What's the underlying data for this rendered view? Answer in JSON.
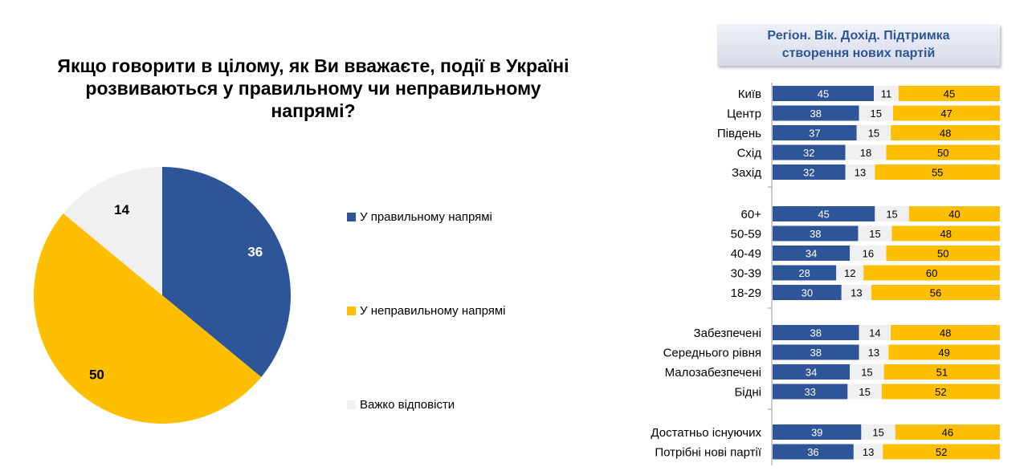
{
  "colors": {
    "right": "#2e5597",
    "hard": "#f0f0f0",
    "wrong": "#fdbf00"
  },
  "chart_data": [
    {
      "type": "pie",
      "title": "Якщо говорити в цілому, як Ви вважаєте, події в Україні розвиваються у правильному чи неправильному напрямі?",
      "slices": [
        {
          "label": "У правильному напрямі",
          "value": 36,
          "color": "#2e5597"
        },
        {
          "label": "У неправильному напрямі",
          "value": 50,
          "color": "#fdbf00"
        },
        {
          "label": "Важко відповісти",
          "value": 14,
          "color": "#f0f0f0"
        }
      ],
      "legend": [
        "У правильному напрямі",
        "У неправильному напрямі",
        "Важко відповісти"
      ],
      "legend_placement": "right"
    },
    {
      "type": "bar",
      "orientation": "horizontal",
      "stacked": true,
      "title": "Регіон. Вік. Дохід. Підтримка створення нових партій",
      "series_order": [
        "У правильному напрямі",
        "Важко відповісти",
        "У неправильному напрямі"
      ],
      "groups": [
        {
          "rows": [
            {
              "label": "Київ",
              "values": [
                45,
                11,
                45
              ]
            },
            {
              "label": "Центр",
              "values": [
                38,
                15,
                47
              ]
            },
            {
              "label": "Південь",
              "values": [
                37,
                15,
                48
              ]
            },
            {
              "label": "Схід",
              "values": [
                32,
                18,
                50
              ]
            },
            {
              "label": "Захід",
              "values": [
                32,
                13,
                55
              ]
            }
          ]
        },
        {
          "rows": [
            {
              "label": "60+",
              "values": [
                45,
                15,
                40
              ]
            },
            {
              "label": "50-59",
              "values": [
                38,
                15,
                48
              ]
            },
            {
              "label": "40-49",
              "values": [
                34,
                16,
                50
              ]
            },
            {
              "label": "30-39",
              "values": [
                28,
                12,
                60
              ]
            },
            {
              "label": "18-29",
              "values": [
                30,
                13,
                56
              ]
            }
          ]
        },
        {
          "rows": [
            {
              "label": "Забезпечені",
              "values": [
                38,
                14,
                48
              ]
            },
            {
              "label": "Середнього рівня",
              "values": [
                38,
                13,
                49
              ]
            },
            {
              "label": "Малозабезпечені",
              "values": [
                34,
                15,
                51
              ]
            },
            {
              "label": "Бідні",
              "values": [
                33,
                15,
                52
              ]
            }
          ]
        },
        {
          "rows": [
            {
              "label": "Достатньо існуючих",
              "values": [
                39,
                15,
                46
              ]
            },
            {
              "label": "Потрібні нові партії",
              "values": [
                36,
                13,
                52
              ]
            }
          ]
        }
      ]
    }
  ]
}
